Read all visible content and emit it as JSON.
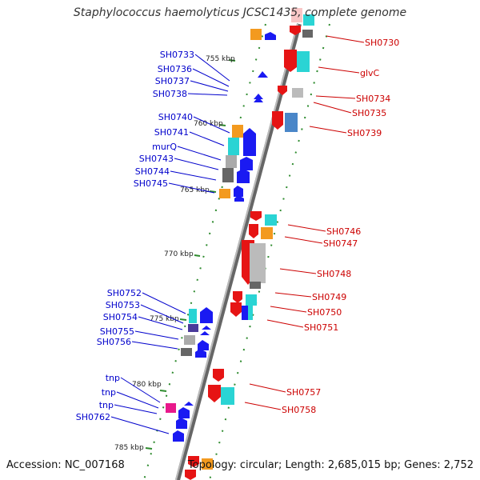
{
  "title": "Staphylococcus haemolyticus JCSC1435, complete genome",
  "footer": {
    "accession": "Accession: NC_007168",
    "summary": "Topology: circular; Length: 2,685,015 bp; Genes: 2,752"
  },
  "colors": {
    "left_labels": "#0000cc",
    "right_labels": "#cc0000",
    "backbone": "#888888",
    "tick_marks": "#228b22"
  },
  "kbp_ticks": [
    "755 kbp",
    "760 kbp",
    "765 kbp",
    "770 kbp",
    "775 kbp",
    "780 kbp",
    "785 kbp"
  ],
  "left_genes": [
    "SH0733",
    "SH0736",
    "SH0737",
    "SH0738",
    "SH0740",
    "SH0741",
    "murQ",
    "SH0743",
    "SH0744",
    "SH0745",
    "SH0752",
    "SH0753",
    "SH0754",
    "SH0755",
    "SH0756",
    "tnp",
    "tnp",
    "tnp",
    "SH0762"
  ],
  "right_genes": [
    "SH0730",
    "glvC",
    "SH0734",
    "SH0735",
    "SH0739",
    "SH0746",
    "SH0747",
    "SH0748",
    "SH0749",
    "SH0750",
    "SH0751",
    "SH0757",
    "SH0758"
  ]
}
